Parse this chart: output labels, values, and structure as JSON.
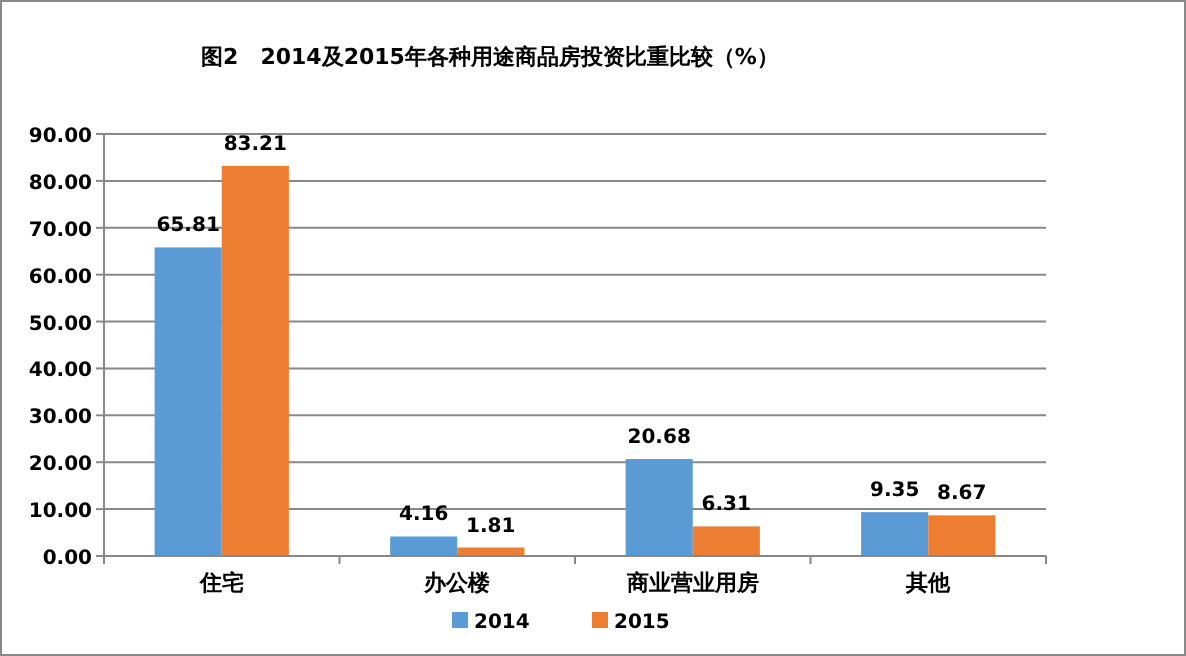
{
  "chart_data": {
    "type": "bar",
    "title": "图2　2014及2015年各种用途商品房投资比重比较（%）",
    "categories": [
      "住宅",
      "办公楼",
      "商业营业用房",
      "其他"
    ],
    "series": [
      {
        "name": "2014",
        "color": "#5b9bd5",
        "values": [
          65.81,
          4.16,
          20.68,
          9.35
        ]
      },
      {
        "name": "2015",
        "color": "#ed7d31",
        "values": [
          83.21,
          1.81,
          6.31,
          8.67
        ]
      }
    ],
    "ylim": [
      0,
      90
    ],
    "yticks": [
      {
        "value": 0,
        "label": "0.00"
      },
      {
        "value": 10,
        "label": "10.00"
      },
      {
        "value": 20,
        "label": "20.00"
      },
      {
        "value": 30,
        "label": "30.00"
      },
      {
        "value": 40,
        "label": "40.00"
      },
      {
        "value": 50,
        "label": "50.00"
      },
      {
        "value": 60,
        "label": "60.00"
      },
      {
        "value": 70,
        "label": "70.00"
      },
      {
        "value": 80,
        "label": "80.00"
      },
      {
        "value": 90,
        "label": "90.00"
      }
    ],
    "grid": "y",
    "legend": "bottom",
    "data_labels": true
  }
}
